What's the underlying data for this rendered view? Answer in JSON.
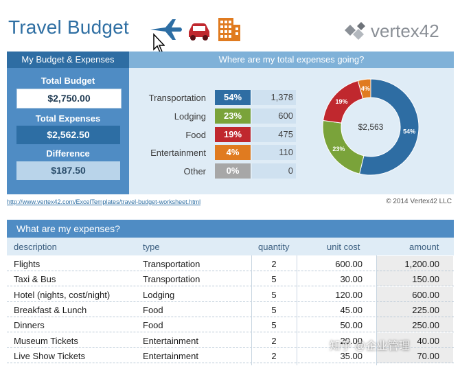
{
  "header": {
    "title": "Travel Budget",
    "brand": "vertex42",
    "icons": [
      "airplane-icon",
      "car-icon",
      "building-icon"
    ]
  },
  "summary": {
    "left_title": "My Budget & Expenses",
    "total_budget_label": "Total Budget",
    "total_budget_value": "$2,750.00",
    "total_expenses_label": "Total Expenses",
    "total_expenses_value": "$2,562.50",
    "difference_label": "Difference",
    "difference_value": "$187.50",
    "right_title": "Where are my total expenses going?",
    "categories": [
      {
        "name": "Transportation",
        "pct": "54%",
        "value": "1,378",
        "color": "#2e6da3"
      },
      {
        "name": "Lodging",
        "pct": "23%",
        "value": "600",
        "color": "#7aa33a"
      },
      {
        "name": "Food",
        "pct": "19%",
        "value": "475",
        "color": "#c0282e"
      },
      {
        "name": "Entertainment",
        "pct": "4%",
        "value": "110",
        "color": "#e07b20"
      },
      {
        "name": "Other",
        "pct": "0%",
        "value": "0",
        "color": "#a7a7a7"
      }
    ],
    "donut_center": "$2,563"
  },
  "footer": {
    "link": "http://www.vertex42.com/ExcelTemplates/travel-budget-worksheet.html",
    "copyright": "© 2014 Vertex42 LLC"
  },
  "expenses": {
    "title": "What are my expenses?",
    "columns": [
      "description",
      "type",
      "quantity",
      "unit cost",
      "amount"
    ],
    "rows": [
      {
        "description": "Flights",
        "type": "Transportation",
        "quantity": "2",
        "unit_cost": "600.00",
        "amount": "1,200.00"
      },
      {
        "description": "Taxi & Bus",
        "type": "Transportation",
        "quantity": "5",
        "unit_cost": "30.00",
        "amount": "150.00"
      },
      {
        "description": "Hotel (nights, cost/night)",
        "type": "Lodging",
        "quantity": "5",
        "unit_cost": "120.00",
        "amount": "600.00"
      },
      {
        "description": "Breakfast & Lunch",
        "type": "Food",
        "quantity": "5",
        "unit_cost": "45.00",
        "amount": "225.00"
      },
      {
        "description": "Dinners",
        "type": "Food",
        "quantity": "5",
        "unit_cost": "50.00",
        "amount": "250.00"
      },
      {
        "description": "Museum Tickets",
        "type": "Entertainment",
        "quantity": "2",
        "unit_cost": "20.00",
        "amount": "40.00"
      },
      {
        "description": "Live Show Tickets",
        "type": "Entertainment",
        "quantity": "2",
        "unit_cost": "35.00",
        "amount": "70.00"
      }
    ]
  },
  "watermark": "知乎 @企业管理"
}
